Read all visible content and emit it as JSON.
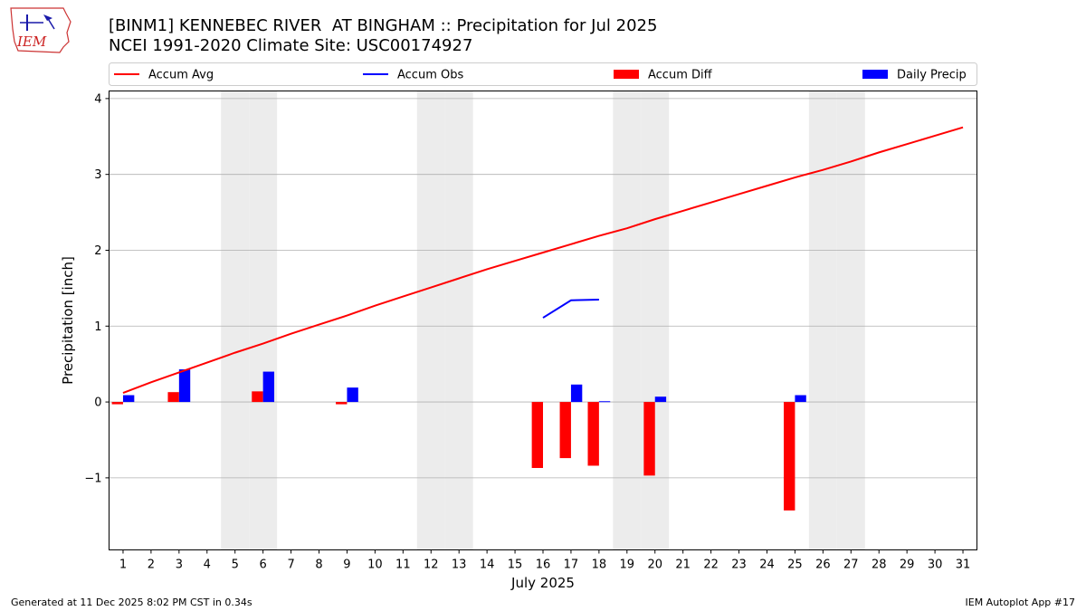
{
  "header": {
    "title": "[BINM1] KENNEBEC RIVER  AT BINGHAM :: Precipitation for Jul 2025",
    "subtitle": "NCEI 1991-2020 Climate Site: USC00174927",
    "logo_text": "IEM"
  },
  "footer": {
    "generated": "Generated at 11 Dec 2025 8:02 PM CST in 0.34s",
    "app": "IEM Autoplot App #17"
  },
  "colors": {
    "accum_avg": "#ff0000",
    "accum_obs": "#0000ff",
    "accum_diff": "#ff0000",
    "daily_precip": "#0000ff",
    "weekend_shade": "#ececec",
    "grid": "#b0b0b0"
  },
  "chart_data": {
    "type": "bar",
    "xlabel": "July 2025",
    "ylabel": "Precipitation [inch]",
    "xlim": [
      0.5,
      31.5
    ],
    "ylim": [
      -1.95,
      4.1
    ],
    "yticks": [
      -1,
      0,
      1,
      2,
      3,
      4
    ],
    "ytick_labels": [
      "−1",
      "0",
      "1",
      "2",
      "3",
      "4"
    ],
    "grid": "horizontal",
    "legend_placement": "top, above plot",
    "days": [
      1,
      2,
      3,
      4,
      5,
      6,
      7,
      8,
      9,
      10,
      11,
      12,
      13,
      14,
      15,
      16,
      17,
      18,
      19,
      20,
      21,
      22,
      23,
      24,
      25,
      26,
      27,
      28,
      29,
      30,
      31
    ],
    "shaded_days": [
      5,
      6,
      12,
      13,
      19,
      20,
      26,
      27
    ],
    "series": [
      {
        "name": "Accum Avg",
        "kind": "line",
        "x": [
          1,
          2,
          3,
          4,
          5,
          6,
          7,
          8,
          9,
          10,
          11,
          12,
          13,
          14,
          15,
          16,
          17,
          18,
          19,
          20,
          21,
          22,
          23,
          24,
          25,
          26,
          27,
          28,
          29,
          30,
          31
        ],
        "values": [
          0.12,
          0.26,
          0.39,
          0.52,
          0.65,
          0.77,
          0.9,
          1.02,
          1.14,
          1.27,
          1.39,
          1.51,
          1.63,
          1.75,
          1.86,
          1.97,
          2.08,
          2.19,
          2.29,
          2.41,
          2.52,
          2.63,
          2.74,
          2.85,
          2.96,
          3.06,
          3.17,
          3.29,
          3.4,
          3.51,
          3.62
        ]
      },
      {
        "name": "Accum Obs",
        "kind": "line",
        "x": [
          16,
          17,
          18
        ],
        "values": [
          1.11,
          1.34,
          1.35
        ]
      },
      {
        "name": "Accum Diff",
        "kind": "bar",
        "x": [
          1,
          3,
          6,
          9,
          16,
          17,
          18,
          20,
          25
        ],
        "values": [
          -0.03,
          0.13,
          0.14,
          -0.03,
          -0.87,
          -0.74,
          -0.84,
          -0.97,
          -1.43
        ]
      },
      {
        "name": "Daily Precip",
        "kind": "bar",
        "x": [
          1,
          3,
          6,
          9,
          17,
          18,
          20,
          25
        ],
        "values": [
          0.09,
          0.43,
          0.4,
          0.19,
          0.23,
          0.01,
          0.07,
          0.09
        ]
      }
    ]
  }
}
